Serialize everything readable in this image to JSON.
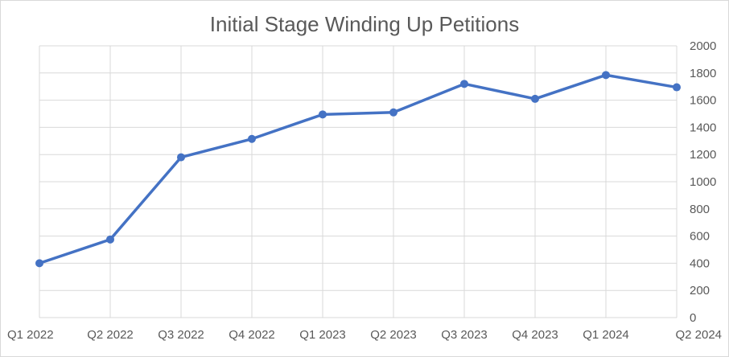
{
  "chart_data": {
    "type": "line",
    "title": "Initial Stage Winding Up Petitions",
    "xlabel": "",
    "ylabel": "",
    "categories": [
      "Q1 2022",
      "Q2 2022",
      "Q3 2022",
      "Q4 2022",
      "Q1 2023",
      "Q2 2023",
      "Q3 2023",
      "Q4 2023",
      "Q1 2024",
      "Q2 2024"
    ],
    "series": [
      {
        "values": [
          400,
          575,
          1180,
          1315,
          1495,
          1510,
          1720,
          1610,
          1785,
          1695
        ],
        "color": "#4472c4"
      }
    ],
    "ylim": [
      0,
      2000
    ],
    "y_ticks": [
      0,
      200,
      400,
      600,
      800,
      1000,
      1200,
      1400,
      1600,
      1800,
      2000
    ],
    "y_axis_side": "right",
    "grid": true,
    "legend": "none",
    "markers": true
  }
}
